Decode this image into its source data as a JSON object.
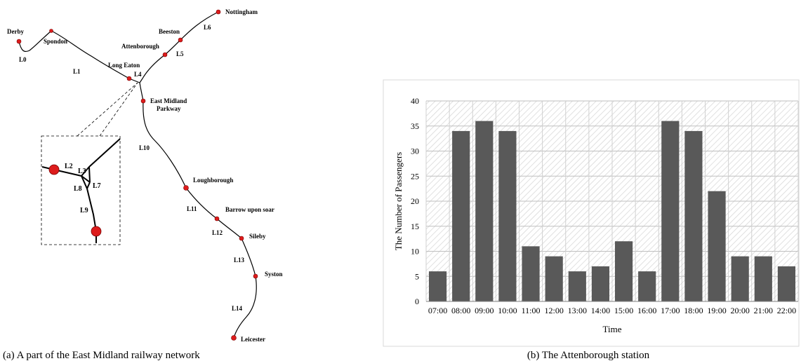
{
  "panel_a": {
    "caption": "(a) A part of the East Midland railway network",
    "stations": [
      "Derby",
      "Spondon",
      "Long Eaton",
      "Attenborough",
      "Beeston",
      "Nottingham",
      "East Midland Parkway",
      "Loughborough",
      "Barrow upon soar",
      "Sileby",
      "Syston",
      "Leicester"
    ],
    "lines": [
      "L0",
      "L1",
      "L4",
      "L5",
      "L6",
      "L10",
      "L11",
      "L12",
      "L13",
      "L14"
    ],
    "inset_lines": [
      "L2",
      "L3",
      "L7",
      "L8",
      "L9"
    ],
    "colors": {
      "station": "#dd1c1c",
      "track": "#000000"
    }
  },
  "panel_b": {
    "caption": "(b) The Attenborough station"
  },
  "chart_data": {
    "type": "bar",
    "categories": [
      "07:00",
      "08:00",
      "09:00",
      "10:00",
      "11:00",
      "12:00",
      "13:00",
      "14:00",
      "15:00",
      "16:00",
      "17:00",
      "18:00",
      "19:00",
      "20:00",
      "21:00",
      "22:00"
    ],
    "values": [
      6,
      34,
      36,
      34,
      11,
      9,
      6,
      7,
      12,
      6,
      36,
      34,
      22,
      9,
      9,
      7
    ],
    "xlabel": "Time",
    "ylabel": "The Number of Passengers",
    "ylim": [
      0,
      40
    ],
    "yticks": [
      0,
      5,
      10,
      15,
      20,
      25,
      30,
      35,
      40
    ],
    "grid": true,
    "colors": {
      "bar": "#595959",
      "background_hatch": "#d9d9d9"
    }
  }
}
